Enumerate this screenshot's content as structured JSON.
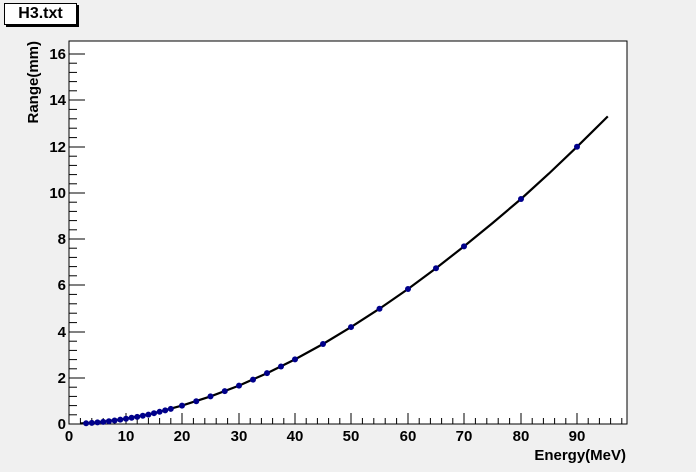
{
  "title": "H3.txt",
  "chart_data": {
    "type": "scatter",
    "title": "H3.txt",
    "xlabel": "Energy(MeV)",
    "ylabel": "Range(mm)",
    "xlim": [
      0,
      99
    ],
    "ylim": [
      0,
      16.4
    ],
    "x_ticks": [
      0,
      10,
      20,
      30,
      40,
      50,
      60,
      70,
      80,
      90
    ],
    "y_ticks": [
      0,
      2,
      4,
      6,
      8,
      10,
      12,
      14,
      16
    ],
    "grid": false,
    "legend": "none",
    "marker_color": "#00008b",
    "line_color": "#000000",
    "series": [
      {
        "x": [
          3,
          4,
          5,
          6,
          7,
          8,
          9,
          10,
          11,
          12,
          13,
          14,
          15,
          16,
          17,
          18,
          20,
          22.5,
          25,
          27.5,
          30,
          32.5,
          35,
          37.5,
          40,
          45,
          50,
          55,
          60,
          65,
          70,
          80,
          90
        ],
        "values": [
          0.03,
          0.05,
          0.07,
          0.09,
          0.12,
          0.15,
          0.19,
          0.23,
          0.27,
          0.31,
          0.36,
          0.41,
          0.47,
          0.53,
          0.59,
          0.66,
          0.8,
          0.99,
          1.2,
          1.43,
          1.67,
          1.93,
          2.21,
          2.5,
          2.81,
          3.48,
          4.21,
          4.99,
          5.83,
          6.73,
          7.68,
          9.74,
          12.01
        ]
      }
    ],
    "fit_curve": {
      "x": [
        2,
        5,
        10,
        15,
        20,
        25,
        30,
        35,
        40,
        45,
        50,
        55,
        60,
        65,
        70,
        75,
        80,
        85,
        90,
        95.5
      ],
      "values": [
        0.02,
        0.07,
        0.23,
        0.47,
        0.8,
        1.2,
        1.67,
        2.21,
        2.81,
        3.48,
        4.21,
        4.99,
        5.83,
        6.73,
        7.68,
        8.69,
        9.74,
        10.85,
        12.01,
        13.3
      ]
    }
  }
}
